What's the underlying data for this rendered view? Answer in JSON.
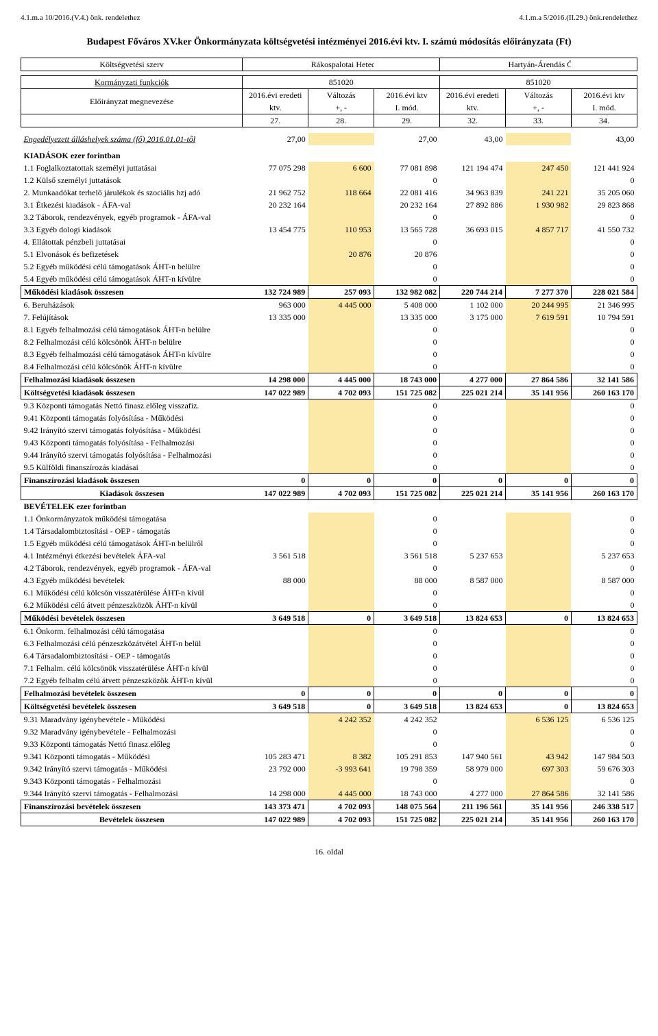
{
  "ref_left": "4.1.m.a 10/2016.(V.4.) önk. rendelethez",
  "ref_right": "4.1.m.a 5/2016.(II.29.) önk.rendelethez",
  "title": "Budapest Főváros XV.ker Önkormányzata költségvetési intézményei  2016.évi ktv. I. számú módosítás előirányzata (Ft)",
  "footer": "16. oldal",
  "shade_color": "#fce9a8",
  "header_szerv": "Költségvetési szerv",
  "org1": "Rákospalotai Hetedhét Óvoda",
  "org2": "Hartyán-Árendás Összevont Óvoda",
  "kormany": "Kormányzati funkciók",
  "eloi": "Előirányzat megnevezése",
  "kf1": "851020",
  "kf2": "851020",
  "colh": {
    "a": "2016.évi eredeti ktv.",
    "b": "Változás +, -",
    "c": "2016.évi ktv I. mód.",
    "d": "2016.évi eredeti ktv.",
    "e": "Változás +, -",
    "f": "2016.évi ktv I. mód."
  },
  "colnums": [
    "27.",
    "28.",
    "29.",
    "32.",
    "33.",
    "34."
  ],
  "row_allas": {
    "label": "Engedélyezett álláshelyek száma (fő)  2016.01.01-től",
    "v": [
      "27,00",
      "",
      "27,00",
      "43,00",
      "",
      "43,00"
    ]
  },
  "kiadasok_hdr": "KIADÁSOK         ezer forintban",
  "rows1": [
    {
      "label": "1.1 Foglalkoztatottak személyi juttatásai",
      "v": [
        "77 075 298",
        "6 600",
        "77 081 898",
        "121 194 474",
        "247 450",
        "121 441 924"
      ]
    },
    {
      "label": "1.2 Külső személyi juttatások",
      "v": [
        "",
        "",
        "0",
        "",
        "",
        "0"
      ]
    },
    {
      "label": "2. Munkaadókat terhelő járulékok és szociális hzj adó",
      "v": [
        "21 962 752",
        "118 664",
        "22 081 416",
        "34 963 839",
        "241 221",
        "35 205 060"
      ]
    },
    {
      "label": "3.1 Étkezési kiadások - ÁFA-val",
      "v": [
        "20 232 164",
        "",
        "20 232 164",
        "27 892 886",
        "1 930 982",
        "29 823 868"
      ]
    },
    {
      "label": "3.2 Táborok, rendezvények, egyéb programok - ÁFA-val",
      "v": [
        "",
        "",
        "0",
        "",
        "",
        "0"
      ]
    },
    {
      "label": "3.3 Egyéb dologi kiadások",
      "v": [
        "13 454 775",
        "110 953",
        "13 565 728",
        "36 693 015",
        "4 857 717",
        "41 550 732"
      ]
    },
    {
      "label": "4. Ellátottak pénzbeli juttatásai",
      "v": [
        "",
        "",
        "0",
        "",
        "",
        "0"
      ]
    },
    {
      "label": "5.1 Elvonások és befizetések",
      "v": [
        "",
        "20 876",
        "20 876",
        "",
        "",
        "0"
      ]
    },
    {
      "label": "5.2 Egyéb működési célú támogatások ÁHT-n belülre",
      "v": [
        "",
        "",
        "0",
        "",
        "",
        "0"
      ]
    },
    {
      "label": "5.4 Egyéb működési célú támogatások ÁHT-n kívülre",
      "v": [
        "",
        "",
        "0",
        "",
        "",
        "0"
      ]
    }
  ],
  "mukodes_k": {
    "label": "Működési kiadások összesen",
    "v": [
      "132 724 989",
      "257 093",
      "132 982 082",
      "220 744 214",
      "7 277 370",
      "228 021 584"
    ]
  },
  "rows2": [
    {
      "label": "6. Beruházások",
      "v": [
        "963 000",
        "4 445 000",
        "5 408 000",
        "1 102 000",
        "20 244 995",
        "21 346 995"
      ]
    },
    {
      "label": "7. Felújítások",
      "v": [
        "13 335 000",
        "",
        "13 335 000",
        "3 175 000",
        "7 619 591",
        "10 794 591"
      ]
    },
    {
      "label": "8.1 Egyéb felhalmozási célú támogatások ÁHT-n belülre",
      "v": [
        "",
        "",
        "0",
        "",
        "",
        "0"
      ]
    },
    {
      "label": "8.2 Felhalmozási célú kölcsönök ÁHT-n belülre",
      "v": [
        "",
        "",
        "0",
        "",
        "",
        "0"
      ]
    },
    {
      "label": "8.3 Egyéb felhalmozási célú támogatások ÁHT-n kívülre",
      "v": [
        "",
        "",
        "0",
        "",
        "",
        "0"
      ]
    },
    {
      "label": "8.4 Felhalmozási célú kölcsönök ÁHT-n kívülre",
      "v": [
        "",
        "",
        "0",
        "",
        "",
        "0"
      ]
    }
  ],
  "felhal_k": {
    "label": "Felhalmozási kiadások összesen",
    "v": [
      "14 298 000",
      "4 445 000",
      "18 743 000",
      "4 277 000",
      "27 864 586",
      "32 141 586"
    ]
  },
  "koltseg_k": {
    "label": "Költségvetési kiadások összesen",
    "v": [
      "147 022 989",
      "4 702 093",
      "151 725 082",
      "225 021 214",
      "35 141 956",
      "260 163 170"
    ]
  },
  "rows3": [
    {
      "label": "9.3   Központi támogatás Nettó finasz.előleg visszafiz.",
      "v": [
        "",
        "",
        "0",
        "",
        "",
        "0"
      ]
    },
    {
      "label": "9.41 Központi támogatás folyósítása - Működési",
      "v": [
        "",
        "",
        "0",
        "",
        "",
        "0"
      ]
    },
    {
      "label": "9.42 Irányító szervi támogatás folyósítása - Működési",
      "v": [
        "",
        "",
        "0",
        "",
        "",
        "0"
      ]
    },
    {
      "label": "9.43 Központi támogatás folyósítása - Felhalmozási",
      "v": [
        "",
        "",
        "0",
        "",
        "",
        "0"
      ]
    },
    {
      "label": "9.44 Irányító szervi támogatás folyósítása - Felhalmozási",
      "v": [
        "",
        "",
        "0",
        "",
        "",
        "0"
      ]
    },
    {
      "label": "9.5 Külföldi finanszírozás kiadásai",
      "v": [
        "",
        "",
        "0",
        "",
        "",
        "0"
      ]
    }
  ],
  "finansz_k": {
    "label": "Finanszírozási kiadások összesen",
    "v": [
      "0",
      "0",
      "0",
      "0",
      "0",
      "0"
    ]
  },
  "kiadas_osz": {
    "label": "Kiadások összesen",
    "v": [
      "147 022 989",
      "4 702 093",
      "151 725 082",
      "225 021 214",
      "35 141 956",
      "260 163 170"
    ]
  },
  "bevetel_hdr": "BEVÉTELEK         ezer forintban",
  "rows4": [
    {
      "label": "1.1 Önkormányzatok működési támogatása",
      "v": [
        "",
        "",
        "0",
        "",
        "",
        "0"
      ]
    },
    {
      "label": "1.4 Társadalombiztosítási - OEP - támogatás",
      "v": [
        "",
        "",
        "0",
        "",
        "",
        "0"
      ]
    },
    {
      "label": "1.5 Egyéb működési célú támogatások ÁHT-n belülről",
      "v": [
        "",
        "",
        "0",
        "",
        "",
        "0"
      ]
    },
    {
      "label": "4.1 Intézményi étkezési bevételek ÁFA-val",
      "v": [
        "3 561 518",
        "",
        "3 561 518",
        "5 237 653",
        "",
        "5 237 653"
      ]
    },
    {
      "label": "4.2 Táborok, rendezvények, egyéb programok - ÁFA-val",
      "v": [
        "",
        "",
        "0",
        "",
        "",
        "0"
      ]
    },
    {
      "label": "4.3 Egyéb működési bevételek",
      "v": [
        "88 000",
        "",
        "88 000",
        "8 587 000",
        "",
        "8 587 000"
      ]
    },
    {
      "label": "6.1 Működési célú kölcsön visszatérülése ÁHT-n kívül",
      "v": [
        "",
        "",
        "0",
        "",
        "",
        "0"
      ]
    },
    {
      "label": "6.2 Működési célú átvett pénzeszközök  ÁHT-n kívül",
      "v": [
        "",
        "",
        "0",
        "",
        "",
        "0"
      ]
    }
  ],
  "mukodes_b": {
    "label": "Működési bevételek összesen",
    "v": [
      "3 649 518",
      "0",
      "3 649 518",
      "13 824 653",
      "0",
      "13 824 653"
    ]
  },
  "rows5": [
    {
      "label": "6.1 Önkorm. felhalmozási célú  támogatása",
      "v": [
        "",
        "",
        "0",
        "",
        "",
        "0"
      ]
    },
    {
      "label": "6.3 Felhalmozási célú pénzeszközátvétel ÁHT-n belül",
      "v": [
        "",
        "",
        "0",
        "",
        "",
        "0"
      ]
    },
    {
      "label": "6.4 Társadalombiztosítási - OEP - támogatás",
      "v": [
        "",
        "",
        "0",
        "",
        "",
        "0"
      ]
    },
    {
      "label": "7.1 Felhalm. célú kölcsönök visszatérülése ÁHT-n kívül",
      "v": [
        "",
        "",
        "0",
        "",
        "",
        "0"
      ]
    },
    {
      "label": "7.2 Egyéb felhalm célú átvett pénzeszközök ÁHT-n kívül",
      "v": [
        "",
        "",
        "0",
        "",
        "",
        "0"
      ]
    }
  ],
  "felhal_b": {
    "label": "Felhalmozási bevételek összesen",
    "v": [
      "0",
      "0",
      "0",
      "0",
      "0",
      "0"
    ]
  },
  "koltseg_b": {
    "label": "Költségvetési bevételek összesen",
    "v": [
      "3 649 518",
      "0",
      "3 649 518",
      "13 824 653",
      "0",
      "13 824 653"
    ]
  },
  "rows6": [
    {
      "label": "9.31  Maradvány igénybevétele - Működési",
      "v": [
        "",
        "4 242 352",
        "4 242 352",
        "",
        "6 536 125",
        "6 536 125"
      ]
    },
    {
      "label": "9.32  Maradvány igénybevétele - Felhalmozási",
      "v": [
        "",
        "",
        "0",
        "",
        "",
        "0"
      ]
    },
    {
      "label": "9.33  Központi támogatás Nettó finasz.előleg",
      "v": [
        "",
        "",
        "0",
        "",
        "",
        "0"
      ]
    },
    {
      "label": "9.341 Központi támogatás - Működési",
      "v": [
        "105 283 471",
        "8 382",
        "105 291 853",
        "147 940 561",
        "43 942",
        "147 984 503"
      ]
    },
    {
      "label": "9.342  Irányító szervi támogatás - Működési",
      "v": [
        "23 792 000",
        "-3 993 641",
        "19 798 359",
        "58 979 000",
        "697 303",
        "59 676 303"
      ]
    },
    {
      "label": "9.343  Központi támogatás - Felhalmozási",
      "v": [
        "",
        "",
        "0",
        "",
        "",
        "0"
      ]
    },
    {
      "label": "9.344  Irányító szervi támogatás - Felhalmozási",
      "v": [
        "14 298 000",
        "4 445 000",
        "18 743 000",
        "4 277 000",
        "27 864 586",
        "32 141 586"
      ]
    }
  ],
  "finansz_b": {
    "label": "Finanszírozási bevételek összesen",
    "v": [
      "143 373 471",
      "4 702 093",
      "148 075 564",
      "211 196 561",
      "35 141 956",
      "246 338 517"
    ]
  },
  "bevetel_osz": {
    "label": "Bevételek összesen",
    "v": [
      "147 022 989",
      "4 702 093",
      "151 725 082",
      "225 021 214",
      "35 141 956",
      "260 163 170"
    ]
  }
}
